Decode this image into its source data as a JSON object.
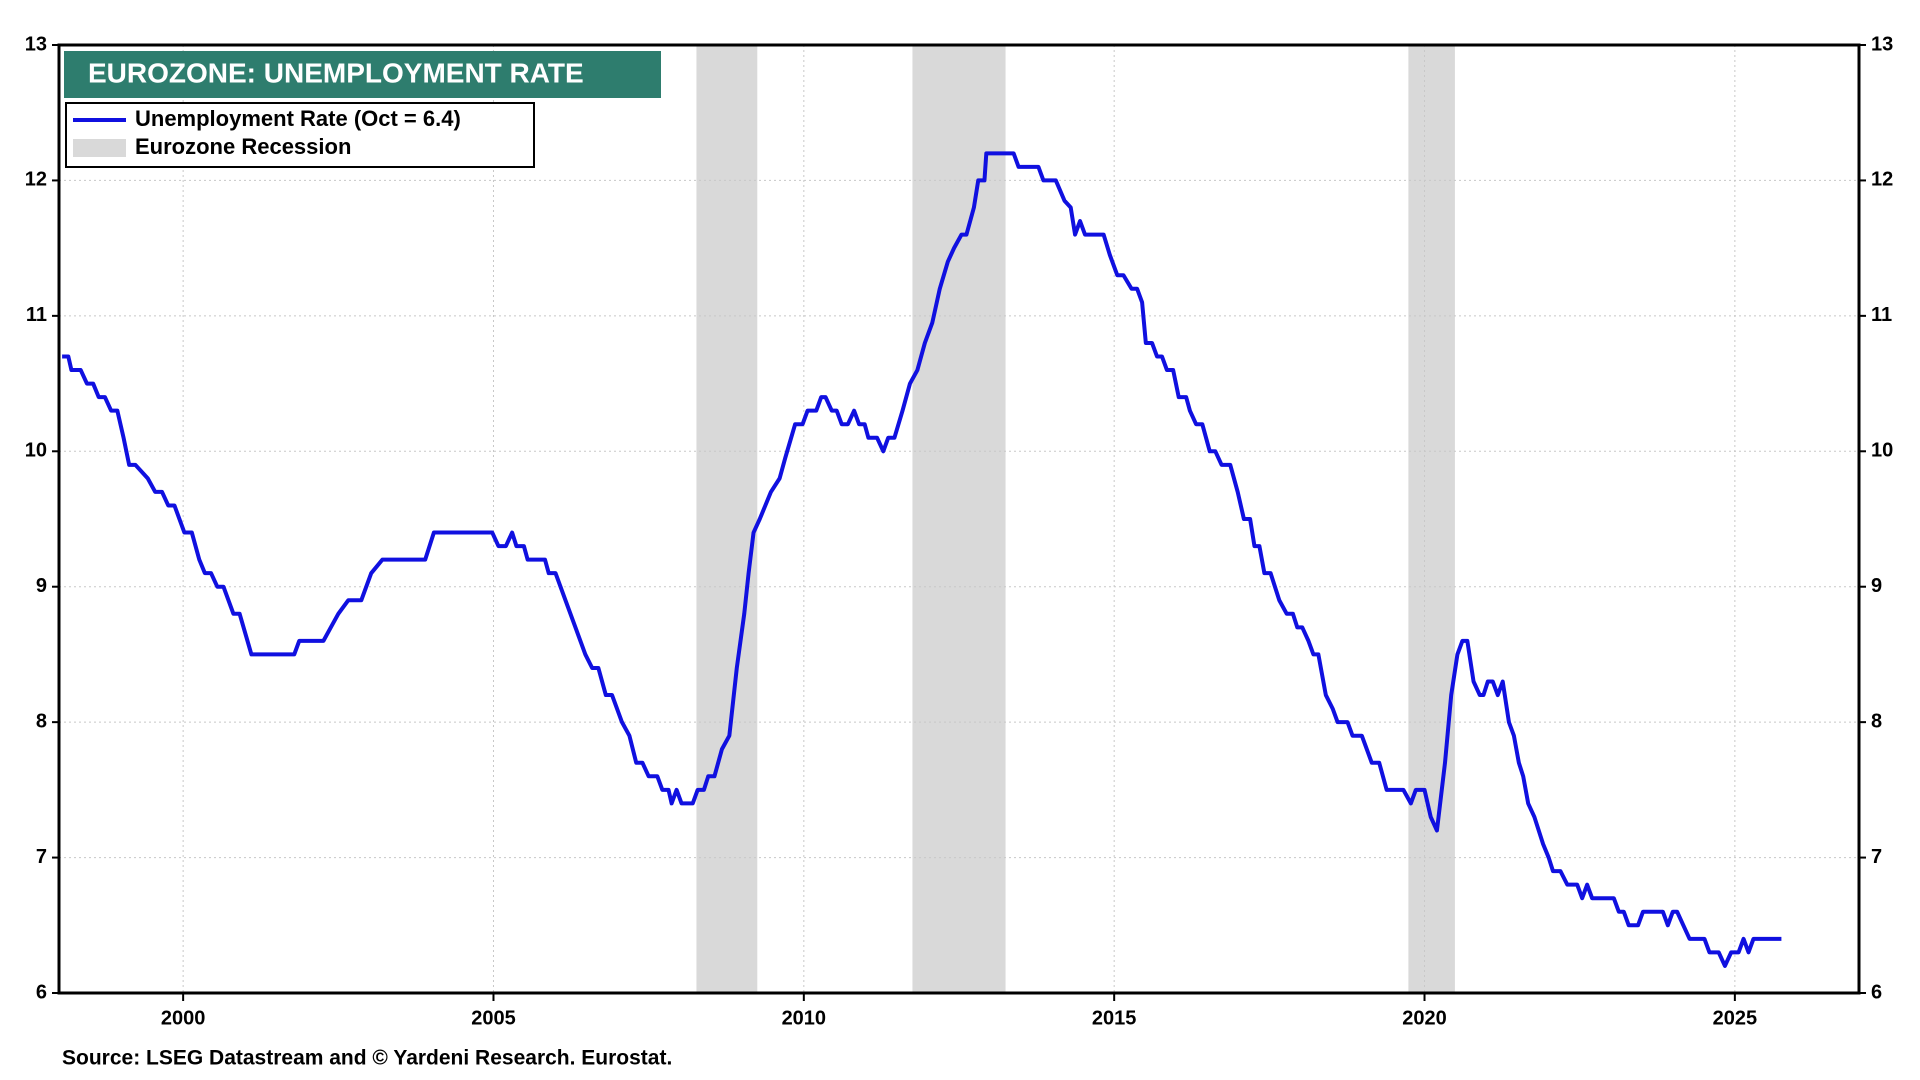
{
  "chart_data": {
    "type": "line",
    "title": "EUROZONE: UNEMPLOYMENT RATE",
    "source": "Source: LSEG Datastream and © Yardeni Research. Eurostat.",
    "x": [
      1998.05,
      1998.15,
      1998.2,
      1998.35,
      1998.45,
      1998.55,
      1998.64,
      1998.74,
      1998.84,
      1998.94,
      1999.04,
      1999.13,
      1999.23,
      1999.43,
      1999.55,
      1999.66,
      1999.76,
      1999.86,
      2000.02,
      2000.14,
      2000.26,
      2000.35,
      2000.45,
      2000.55,
      2000.65,
      2000.81,
      2000.91,
      2001.1,
      2001.79,
      2001.87,
      2002.26,
      2002.38,
      2002.5,
      2002.66,
      2002.87,
      2003.03,
      2003.21,
      2003.9,
      2004.04,
      2004.98,
      2005.08,
      2005.2,
      2005.3,
      2005.37,
      2005.49,
      2005.55,
      2005.83,
      2005.89,
      2006.0,
      2006.16,
      2006.32,
      2006.48,
      2006.59,
      2006.69,
      2006.81,
      2006.91,
      2007.07,
      2007.19,
      2007.3,
      2007.4,
      2007.5,
      2007.64,
      2007.72,
      2007.82,
      2007.87,
      2007.95,
      2008.03,
      2008.21,
      2008.29,
      2008.39,
      2008.46,
      2008.56,
      2008.68,
      2008.8,
      2008.92,
      2009.04,
      2009.11,
      2009.19,
      2009.29,
      2009.47,
      2009.61,
      2009.7,
      2009.86,
      2009.98,
      2010.06,
      2010.2,
      2010.28,
      2010.35,
      2010.45,
      2010.53,
      2010.61,
      2010.71,
      2010.81,
      2010.89,
      2010.98,
      2011.04,
      2011.18,
      2011.28,
      2011.36,
      2011.46,
      2011.59,
      2011.71,
      2011.83,
      2011.95,
      2012.07,
      2012.19,
      2012.32,
      2012.42,
      2012.54,
      2012.62,
      2012.74,
      2012.81,
      2012.91,
      2012.94,
      2013.38,
      2013.46,
      2013.78,
      2013.86,
      2014.06,
      2014.2,
      2014.3,
      2014.37,
      2014.45,
      2014.53,
      2014.83,
      2014.93,
      2015.05,
      2015.15,
      2015.28,
      2015.37,
      2015.45,
      2015.51,
      2015.61,
      2015.69,
      2015.77,
      2015.85,
      2015.95,
      2016.04,
      2016.16,
      2016.22,
      2016.32,
      2016.42,
      2016.54,
      2016.63,
      2016.73,
      2016.87,
      2016.99,
      2017.09,
      2017.19,
      2017.26,
      2017.34,
      2017.42,
      2017.52,
      2017.66,
      2017.78,
      2017.88,
      2017.95,
      2018.03,
      2018.13,
      2018.21,
      2018.29,
      2018.41,
      2018.52,
      2018.6,
      2018.76,
      2018.84,
      2018.99,
      2019.15,
      2019.27,
      2019.39,
      2019.66,
      2019.78,
      2019.86,
      2020.0,
      2020.1,
      2020.2,
      2020.33,
      2020.43,
      2020.53,
      2020.61,
      2020.69,
      2020.79,
      2020.89,
      2020.95,
      2021.02,
      2021.1,
      2021.18,
      2021.26,
      2021.36,
      2021.44,
      2021.52,
      2021.59,
      2021.67,
      2021.77,
      2021.91,
      2022.0,
      2022.07,
      2022.19,
      2022.3,
      2022.46,
      2022.54,
      2022.62,
      2022.7,
      2023.05,
      2023.13,
      2023.21,
      2023.29,
      2023.44,
      2023.52,
      2023.84,
      2023.92,
      2024.0,
      2024.07,
      2024.17,
      2024.27,
      2024.51,
      2024.59,
      2024.74,
      2024.84,
      2024.94,
      2025.06,
      2025.14,
      2025.22,
      2025.3,
      2025.75
    ],
    "series": [
      {
        "name": "Unemployment Rate (Oct = 6.4)",
        "color": "#1010e0",
        "values": [
          10.7,
          10.7,
          10.6,
          10.6,
          10.5,
          10.5,
          10.4,
          10.4,
          10.3,
          10.3,
          10.1,
          9.9,
          9.9,
          9.8,
          9.7,
          9.7,
          9.6,
          9.6,
          9.4,
          9.4,
          9.2,
          9.1,
          9.1,
          9.0,
          9.0,
          8.8,
          8.8,
          8.5,
          8.5,
          8.6,
          8.6,
          8.7,
          8.8,
          8.9,
          8.9,
          9.1,
          9.2,
          9.2,
          9.4,
          9.4,
          9.3,
          9.3,
          9.4,
          9.3,
          9.3,
          9.2,
          9.2,
          9.1,
          9.1,
          8.9,
          8.7,
          8.5,
          8.4,
          8.4,
          8.2,
          8.2,
          8.0,
          7.9,
          7.7,
          7.7,
          7.6,
          7.6,
          7.5,
          7.5,
          7.4,
          7.5,
          7.4,
          7.4,
          7.5,
          7.5,
          7.6,
          7.6,
          7.8,
          7.9,
          8.4,
          8.8,
          9.1,
          9.4,
          9.5,
          9.7,
          9.8,
          9.95,
          10.2,
          10.2,
          10.3,
          10.3,
          10.4,
          10.4,
          10.3,
          10.3,
          10.2,
          10.2,
          10.3,
          10.2,
          10.2,
          10.1,
          10.1,
          10.0,
          10.1,
          10.1,
          10.3,
          10.5,
          10.6,
          10.8,
          10.95,
          11.2,
          11.4,
          11.5,
          11.6,
          11.6,
          11.8,
          12.0,
          12.0,
          12.2,
          12.2,
          12.1,
          12.1,
          12.0,
          12.0,
          11.85,
          11.8,
          11.6,
          11.7,
          11.6,
          11.6,
          11.45,
          11.3,
          11.3,
          11.2,
          11.2,
          11.1,
          10.8,
          10.8,
          10.7,
          10.7,
          10.6,
          10.6,
          10.4,
          10.4,
          10.3,
          10.2,
          10.2,
          10.0,
          10.0,
          9.9,
          9.9,
          9.7,
          9.5,
          9.5,
          9.3,
          9.3,
          9.1,
          9.1,
          8.9,
          8.8,
          8.8,
          8.7,
          8.7,
          8.6,
          8.5,
          8.5,
          8.2,
          8.1,
          8.0,
          8.0,
          7.9,
          7.9,
          7.7,
          7.7,
          7.5,
          7.5,
          7.4,
          7.5,
          7.5,
          7.3,
          7.2,
          7.7,
          8.2,
          8.5,
          8.6,
          8.6,
          8.3,
          8.2,
          8.2,
          8.3,
          8.3,
          8.2,
          8.3,
          8.0,
          7.9,
          7.7,
          7.6,
          7.4,
          7.3,
          7.1,
          7.0,
          6.9,
          6.9,
          6.8,
          6.8,
          6.7,
          6.8,
          6.7,
          6.7,
          6.6,
          6.6,
          6.5,
          6.5,
          6.6,
          6.6,
          6.5,
          6.6,
          6.6,
          6.5,
          6.4,
          6.4,
          6.3,
          6.3,
          6.2,
          6.3,
          6.3,
          6.4,
          6.3,
          6.4,
          6.4
        ]
      }
    ],
    "recessions": {
      "name": "Eurozone Recession",
      "color": "#d9d9d9",
      "periods": [
        [
          2008.27,
          2009.25
        ],
        [
          2011.75,
          2013.25
        ],
        [
          2019.74,
          2020.49
        ]
      ]
    },
    "xlim": [
      1998,
      2027
    ],
    "xticks": [
      2000,
      2005,
      2010,
      2015,
      2020,
      2025
    ],
    "ylim": [
      6,
      13
    ],
    "yticks": [
      6,
      7,
      8,
      9,
      10,
      11,
      12,
      13
    ],
    "y2lim": [
      6,
      13
    ],
    "y2ticks": [
      6,
      7,
      8,
      9,
      10,
      11,
      12,
      13
    ],
    "grid": true
  }
}
